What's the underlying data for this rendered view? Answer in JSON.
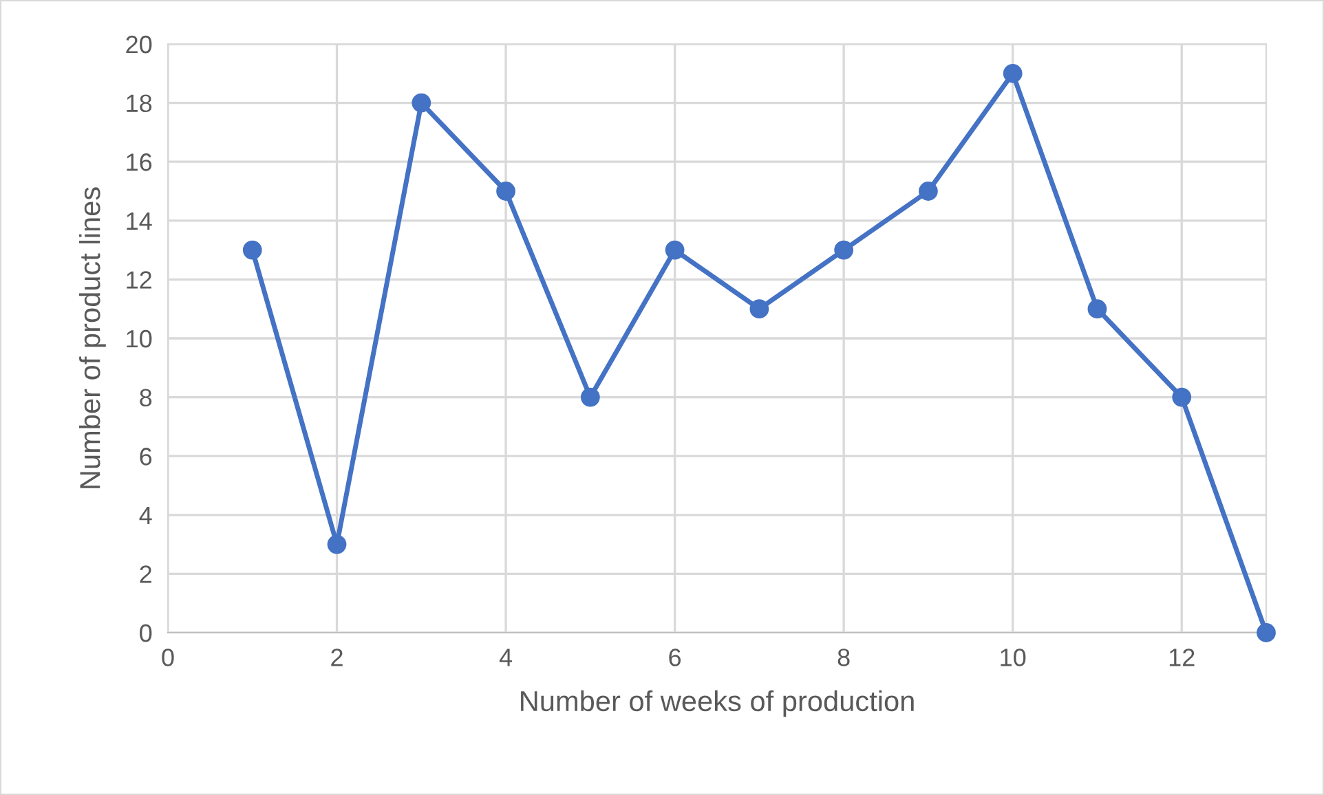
{
  "chart_data": {
    "type": "line",
    "xlabel": "Number of weeks of production",
    "ylabel": "Number of product lines",
    "x": [
      1,
      2,
      3,
      4,
      5,
      6,
      7,
      8,
      9,
      10,
      11,
      12,
      13
    ],
    "series": [
      {
        "color": "#4472c4",
        "values": [
          13,
          3,
          18,
          15,
          8,
          13,
          11,
          13,
          15,
          19,
          11,
          8,
          0
        ]
      }
    ],
    "xlim": [
      0,
      13
    ],
    "xticks": [
      0,
      2,
      4,
      6,
      8,
      10,
      12
    ],
    "ylim": [
      0,
      20
    ],
    "yticks": [
      0,
      2,
      4,
      6,
      8,
      10,
      12,
      14,
      16,
      18,
      20
    ],
    "grid": true,
    "marker": "circle",
    "line_style": "solid"
  }
}
